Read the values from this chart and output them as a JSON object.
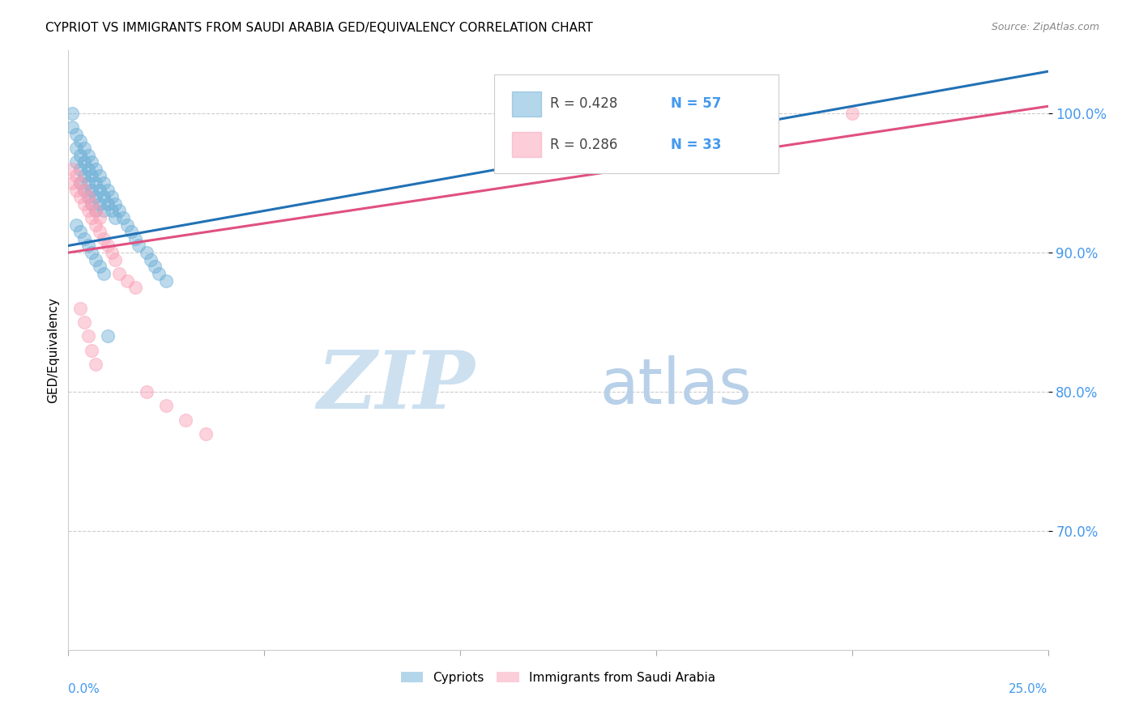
{
  "title": "CYPRIOT VS IMMIGRANTS FROM SAUDI ARABIA GED/EQUIVALENCY CORRELATION CHART",
  "source": "Source: ZipAtlas.com",
  "ylabel": "GED/Equivalency",
  "ytick_labels": [
    "100.0%",
    "90.0%",
    "80.0%",
    "70.0%"
  ],
  "ytick_values": [
    1.0,
    0.9,
    0.8,
    0.7
  ],
  "xmin": 0.0,
  "xmax": 0.25,
  "ymin": 0.615,
  "ymax": 1.045,
  "legend_r1": "R = 0.428",
  "legend_n1": "N = 57",
  "legend_r2": "R = 0.286",
  "legend_n2": "N = 33",
  "legend_label1": "Cypriots",
  "legend_label2": "Immigrants from Saudi Arabia",
  "cypriot_color": "#6baed6",
  "saudi_color": "#fa9fb5",
  "trendline1_color": "#2171b5",
  "trendline2_color": "#e05080",
  "watermark_zip": "ZIP",
  "watermark_atlas": "atlas",
  "watermark_color_zip": "#c8dff0",
  "watermark_color_atlas": "#c0d8e8",
  "cypriot_scatter_x": [
    0.001,
    0.001,
    0.002,
    0.002,
    0.002,
    0.003,
    0.003,
    0.003,
    0.003,
    0.004,
    0.004,
    0.004,
    0.004,
    0.005,
    0.005,
    0.005,
    0.005,
    0.006,
    0.006,
    0.006,
    0.006,
    0.007,
    0.007,
    0.007,
    0.007,
    0.008,
    0.008,
    0.008,
    0.009,
    0.009,
    0.009,
    0.01,
    0.01,
    0.011,
    0.011,
    0.012,
    0.012,
    0.013,
    0.014,
    0.015,
    0.016,
    0.017,
    0.018,
    0.02,
    0.021,
    0.022,
    0.023,
    0.025,
    0.002,
    0.003,
    0.004,
    0.005,
    0.006,
    0.007,
    0.008,
    0.009,
    0.01
  ],
  "cypriot_scatter_y": [
    1.0,
    0.99,
    0.985,
    0.975,
    0.965,
    0.98,
    0.97,
    0.96,
    0.95,
    0.975,
    0.965,
    0.955,
    0.945,
    0.97,
    0.96,
    0.95,
    0.94,
    0.965,
    0.955,
    0.945,
    0.935,
    0.96,
    0.95,
    0.94,
    0.93,
    0.955,
    0.945,
    0.935,
    0.95,
    0.94,
    0.93,
    0.945,
    0.935,
    0.94,
    0.93,
    0.935,
    0.925,
    0.93,
    0.925,
    0.92,
    0.915,
    0.91,
    0.905,
    0.9,
    0.895,
    0.89,
    0.885,
    0.88,
    0.92,
    0.915,
    0.91,
    0.905,
    0.9,
    0.895,
    0.89,
    0.885,
    0.84
  ],
  "saudi_scatter_x": [
    0.001,
    0.001,
    0.002,
    0.002,
    0.003,
    0.003,
    0.004,
    0.004,
    0.005,
    0.005,
    0.006,
    0.006,
    0.007,
    0.007,
    0.008,
    0.008,
    0.009,
    0.01,
    0.011,
    0.012,
    0.013,
    0.015,
    0.017,
    0.02,
    0.025,
    0.03,
    0.035,
    0.003,
    0.004,
    0.005,
    0.006,
    0.007,
    0.2
  ],
  "saudi_scatter_y": [
    0.96,
    0.95,
    0.955,
    0.945,
    0.95,
    0.94,
    0.945,
    0.935,
    0.94,
    0.93,
    0.935,
    0.925,
    0.93,
    0.92,
    0.925,
    0.915,
    0.91,
    0.905,
    0.9,
    0.895,
    0.885,
    0.88,
    0.875,
    0.8,
    0.79,
    0.78,
    0.77,
    0.86,
    0.85,
    0.84,
    0.83,
    0.82,
    1.0
  ],
  "trendline1_x": [
    0.0,
    0.25
  ],
  "trendline1_y": [
    0.905,
    1.03
  ],
  "trendline2_x": [
    0.0,
    0.25
  ],
  "trendline2_y": [
    0.9,
    1.005
  ]
}
